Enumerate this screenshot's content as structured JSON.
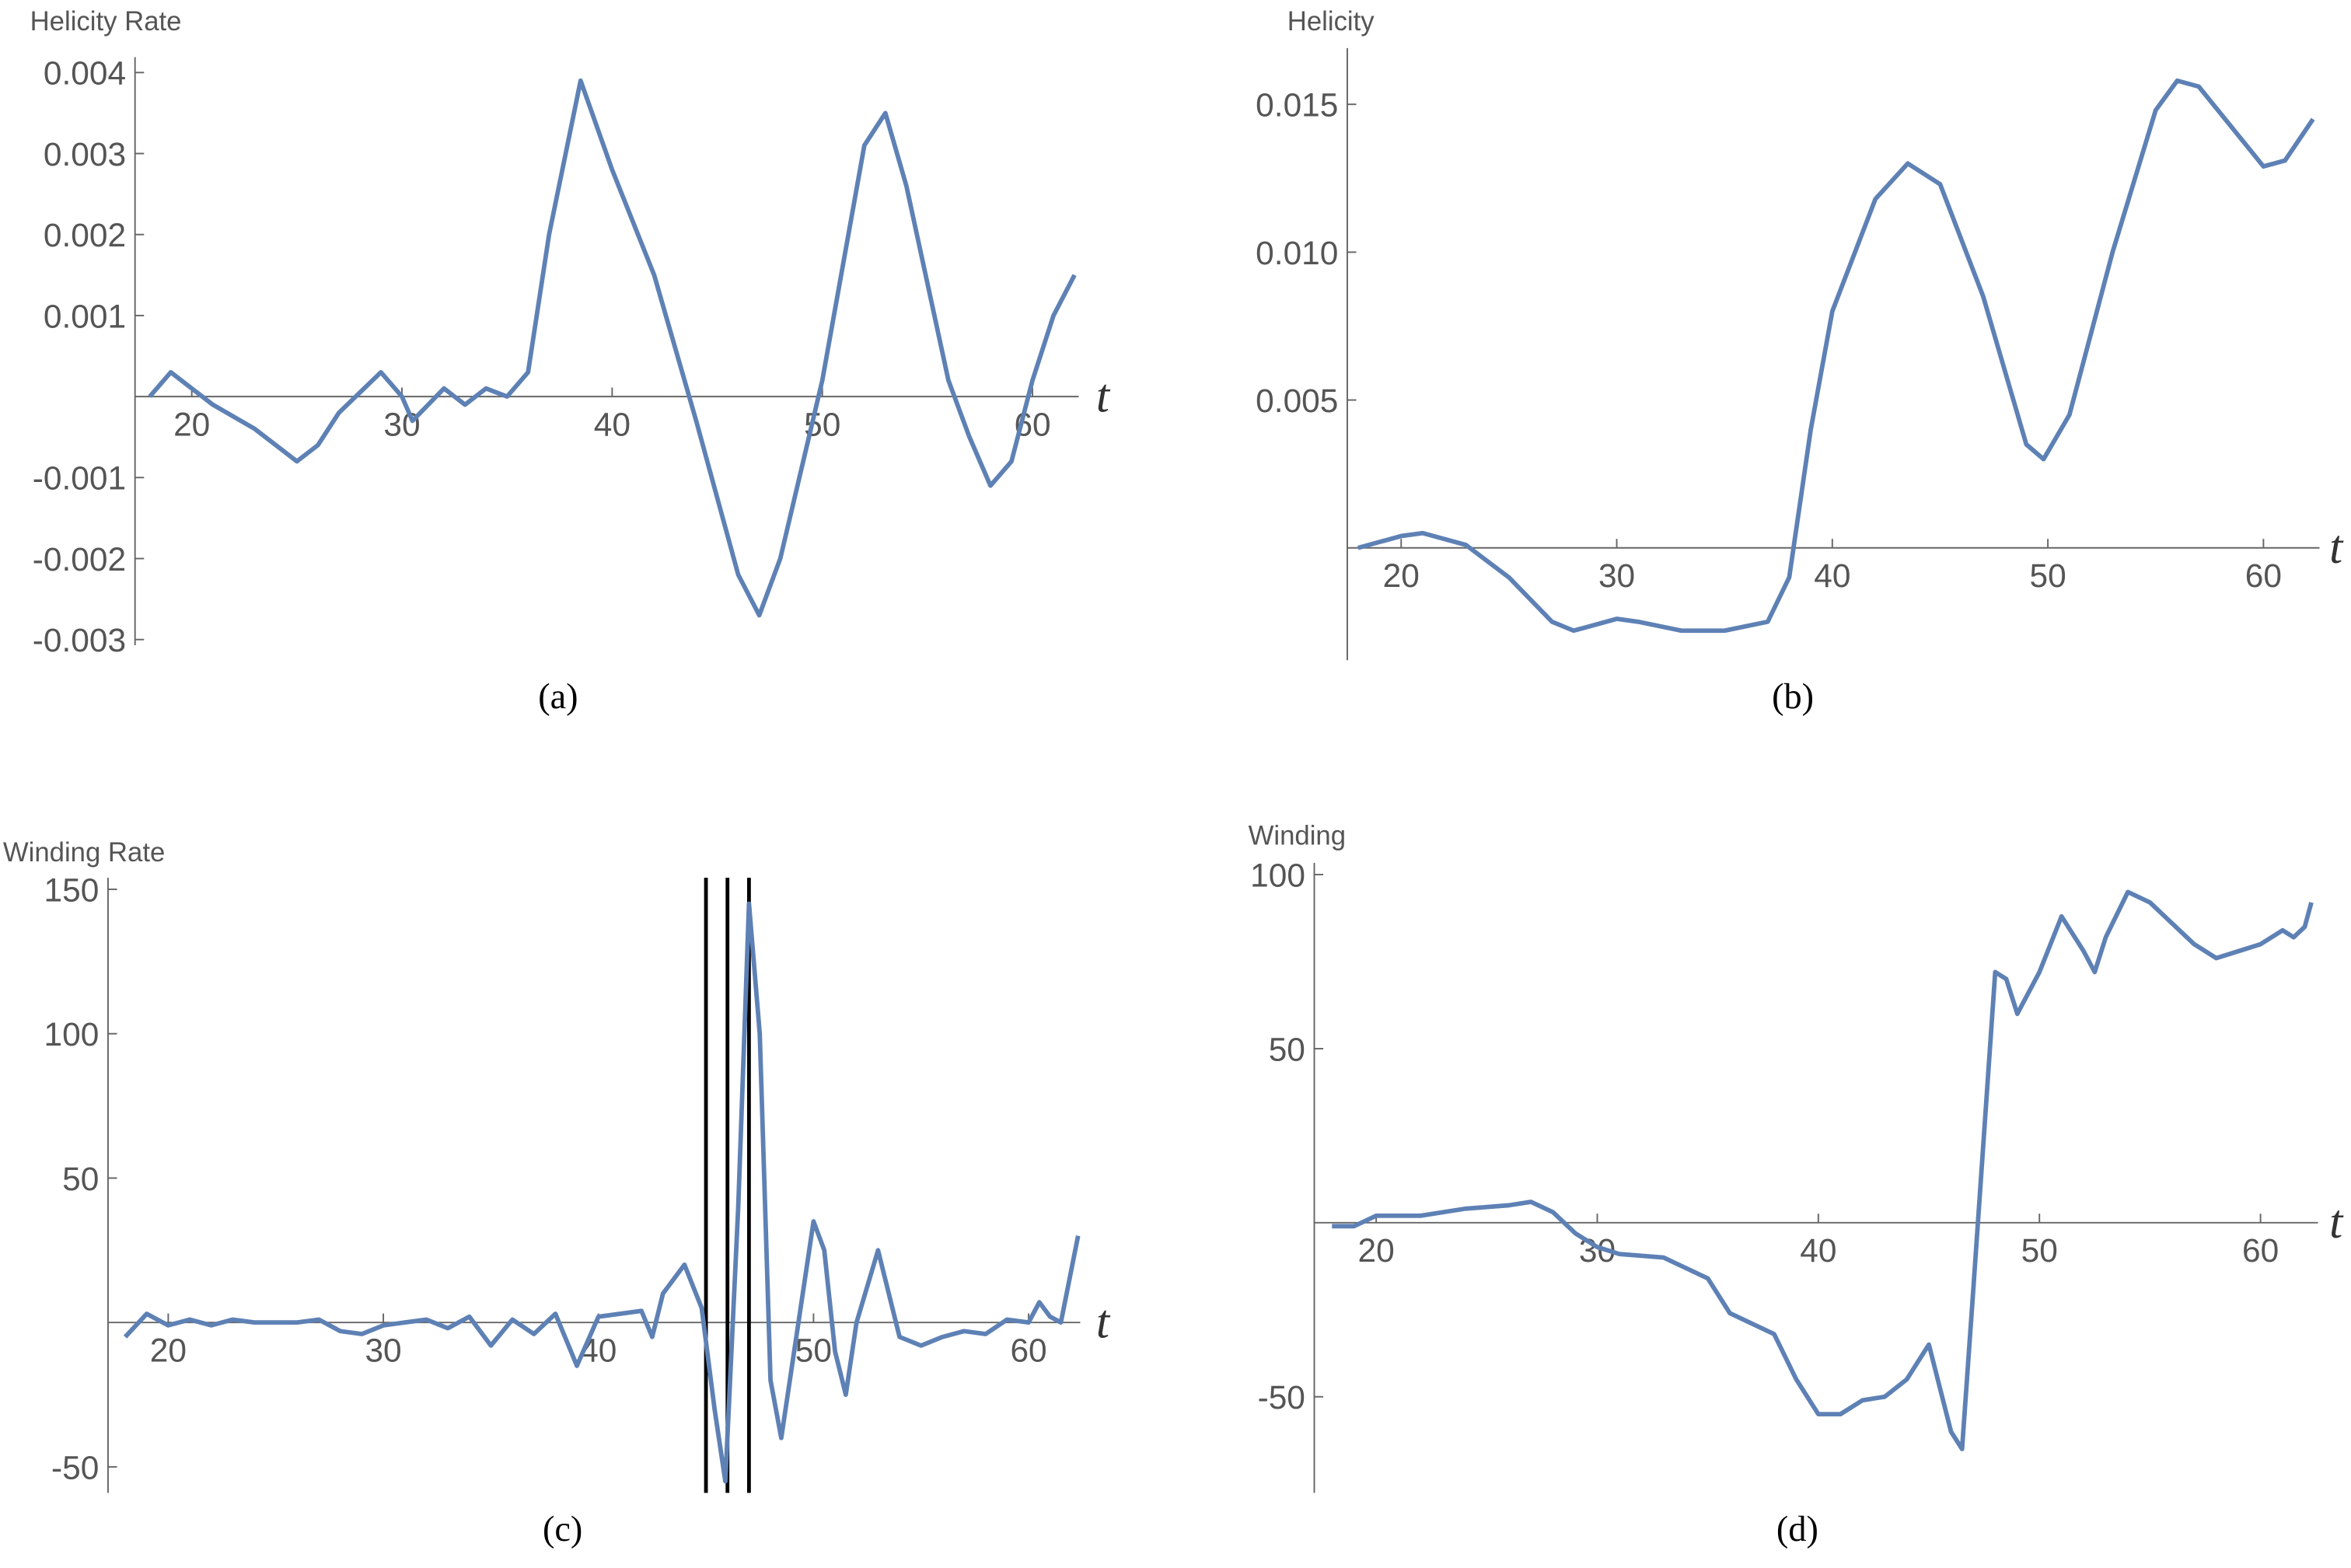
{
  "chart_data": [
    {
      "type": "line",
      "ylabel": "Helicity Rate",
      "xlabel": "t",
      "caption": "(a)",
      "xlim": [
        17.3,
        62.2
      ],
      "ylim": [
        -0.00307,
        0.00419
      ],
      "xticks": [
        20,
        30,
        40,
        50,
        60
      ],
      "yticks": [
        -0.003,
        -0.002,
        -0.001,
        0.001,
        0.002,
        0.003,
        0.004
      ],
      "series": [
        {
          "color": "#5e81b5",
          "x": [
            18,
            19,
            20,
            21,
            23,
            25,
            26,
            27,
            29,
            30,
            30.5,
            32,
            33,
            34,
            35,
            36,
            37,
            38.5,
            40,
            42,
            44,
            46,
            47,
            48,
            50,
            52,
            53,
            54,
            56,
            57,
            58,
            59,
            60,
            61,
            62
          ],
          "values": [
            0,
            0.0003,
            0.0001,
            -0.0001,
            -0.0004,
            -0.0008,
            -0.0006,
            -0.0002,
            0.0003,
            0,
            -0.0003,
            0.0001,
            -0.0001,
            0.0001,
            0,
            0.0003,
            0.002,
            0.0039,
            0.0028,
            0.0015,
            -0.0003,
            -0.0022,
            -0.0027,
            -0.002,
            0.0002,
            0.0031,
            0.0035,
            0.0026,
            0.0002,
            -0.0005,
            -0.0011,
            -0.0008,
            0.0002,
            0.001,
            0.0015
          ]
        }
      ]
    },
    {
      "type": "line",
      "ylabel": "Helicity",
      "xlabel": "t",
      "caption": "(b)",
      "xlim": [
        17.5,
        62.6
      ],
      "ylim": [
        -0.0038,
        0.0169
      ],
      "xticks": [
        20,
        30,
        40,
        50,
        60
      ],
      "yticks": [
        0.005,
        {
          "value": 0.01,
          "label": "0.010"
        },
        0.015
      ],
      "series": [
        {
          "color": "#5e81b5",
          "x": [
            18,
            20,
            21,
            23,
            25,
            27,
            28,
            30,
            31,
            33,
            35,
            37,
            38,
            39,
            40,
            42,
            43.5,
            45,
            47,
            49,
            49.8,
            51,
            53,
            55,
            56,
            57,
            59,
            60,
            61,
            62.3
          ],
          "values": [
            0,
            0.0004,
            0.0005,
            0.0001,
            -0.001,
            -0.0025,
            -0.0028,
            -0.0024,
            -0.0025,
            -0.0028,
            -0.0028,
            -0.0025,
            -0.001,
            0.004,
            0.008,
            0.0118,
            0.013,
            0.0123,
            0.0085,
            0.0035,
            0.003,
            0.0045,
            0.01,
            0.0148,
            0.0158,
            0.0156,
            0.0138,
            0.0129,
            0.0131,
            0.0145
          ]
        }
      ]
    },
    {
      "type": "line",
      "ylabel": "Winding Rate",
      "xlabel": "t",
      "caption": "(c)",
      "xlim": [
        17.2,
        62.4
      ],
      "ylim": [
        -59,
        154
      ],
      "xticks": [
        20,
        30,
        40,
        50,
        60
      ],
      "yticks": [
        -50,
        50,
        100,
        150
      ],
      "vlines": [
        45,
        46,
        47
      ],
      "series": [
        {
          "color": "#5e81b5",
          "x": [
            18,
            19,
            20,
            21,
            22,
            23,
            24,
            25,
            26,
            27,
            28,
            29,
            30,
            31,
            32,
            33,
            34,
            35,
            36,
            37,
            38,
            39,
            40,
            41,
            42,
            42.5,
            43,
            44,
            44.8,
            45.4,
            45.9,
            46.5,
            47,
            47.5,
            48,
            48.5,
            49,
            50,
            50.5,
            51,
            51.5,
            52,
            53,
            53.5,
            54,
            55,
            56,
            57,
            58,
            59,
            60,
            60.5,
            61,
            61.5,
            62.3
          ],
          "values": [
            -5,
            3,
            -1,
            1,
            -1,
            1,
            0,
            0,
            0,
            1,
            -3,
            -4,
            -1,
            0,
            1,
            -2,
            2,
            -8,
            1,
            -4,
            3,
            -15,
            2,
            3,
            4,
            -5,
            10,
            20,
            5,
            -30,
            -55,
            40,
            145,
            100,
            -20,
            -40,
            -15,
            35,
            25,
            -10,
            -25,
            0,
            25,
            10,
            -5,
            -8,
            -5,
            -3,
            -4,
            1,
            0,
            7,
            2,
            0,
            30
          ]
        }
      ]
    },
    {
      "type": "line",
      "ylabel": "Winding",
      "xlabel": "t",
      "caption": "(d)",
      "xlim": [
        17.2,
        62.6
      ],
      "ylim": [
        -77.6,
        103.4
      ],
      "xticks": [
        20,
        30,
        40,
        50,
        60
      ],
      "yticks": [
        -50,
        50,
        100
      ],
      "series": [
        {
          "color": "#5e81b5",
          "x": [
            18,
            19,
            20,
            22,
            24,
            26,
            27,
            28,
            29,
            30,
            31,
            33,
            35,
            36,
            38,
            39,
            40,
            41,
            42,
            43,
            44,
            45,
            46,
            46.5,
            47,
            48,
            48.5,
            49,
            50,
            51,
            52,
            52.5,
            53,
            54,
            55,
            56,
            57,
            58,
            59,
            60,
            61,
            61.5,
            62,
            62.3
          ],
          "values": [
            -1,
            -1,
            2,
            2,
            4,
            5,
            6,
            3,
            -3,
            -7,
            -9,
            -10,
            -16,
            -26,
            -32,
            -45,
            -55,
            -55,
            -51,
            -50,
            -45,
            -35,
            -60,
            -65,
            -20,
            72,
            70,
            60,
            72,
            88,
            78,
            72,
            82,
            95,
            92,
            86,
            80,
            76,
            78,
            80,
            84,
            82,
            85,
            92
          ]
        }
      ]
    }
  ]
}
